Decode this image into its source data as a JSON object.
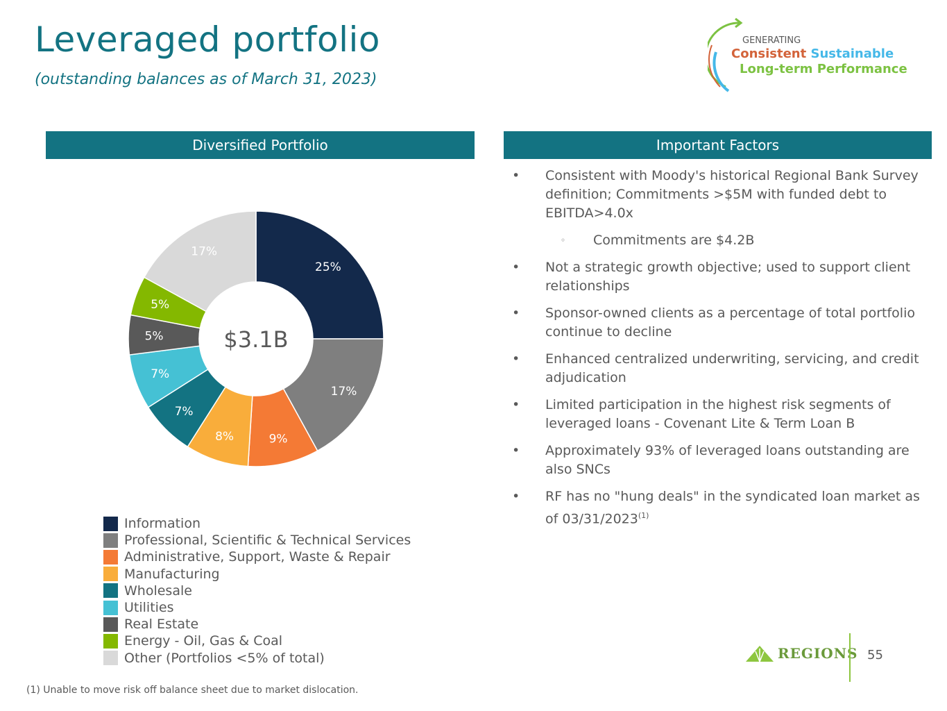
{
  "header": {
    "title": "Leveraged portfolio",
    "subtitle": "(outstanding balances as of March 31, 2023)"
  },
  "logo": {
    "line1": "GENERATING",
    "word_consistent": "Consistent",
    "word_sustainable": "Sustainable",
    "line3": "Long-term Performance"
  },
  "left_panel": {
    "title": "Diversified Portfolio"
  },
  "right_panel": {
    "title": "Important Factors"
  },
  "chart_data": {
    "type": "pie",
    "donut": true,
    "center_label": "$3.1B",
    "categories": [
      "Information",
      "Professional, Scientific & Technical Services",
      "Administrative, Support, Waste & Repair",
      "Manufacturing",
      "Wholesale",
      "Utilities",
      "Real Estate",
      "Energy - Oil, Gas & Coal",
      "Other (Portfolios <5% of total)"
    ],
    "values": [
      25,
      17,
      9,
      8,
      7,
      7,
      5,
      5,
      17
    ],
    "data_labels": [
      "25%",
      "17%",
      "9%",
      "8%",
      "7%",
      "7%",
      "5%",
      "5%",
      "17%"
    ],
    "colors": [
      "#13294b",
      "#7f7f7f",
      "#f47a35",
      "#f9ad3b",
      "#137382",
      "#45c1d4",
      "#595959",
      "#84b800",
      "#d9d9d9"
    ],
    "legend_position": "bottom-left"
  },
  "factors": [
    {
      "type": "bullet",
      "text": "Consistent with Moody's historical Regional Bank Survey definition; Commitments >$5M with funded debt to EBITDA>4.0x"
    },
    {
      "type": "sub",
      "text": "Commitments are $4.2B"
    },
    {
      "type": "bullet",
      "text": "Not a strategic growth objective; used to support client relationships"
    },
    {
      "type": "bullet",
      "text": "Sponsor-owned clients as a percentage of total portfolio continue to decline"
    },
    {
      "type": "bullet",
      "text": "Enhanced centralized underwriting, servicing, and credit adjudication"
    },
    {
      "type": "bullet",
      "text": "Limited participation in the highest risk segments of leveraged loans - Covenant Lite & Term Loan B"
    },
    {
      "type": "bullet",
      "text": "Approximately 93% of leveraged loans outstanding are also SNCs"
    },
    {
      "type": "bullet",
      "text": "RF has no \"hung deals\" in the syndicated loan market as of 03/31/2023",
      "sup": "(1)"
    }
  ],
  "footnote": "(1) Unable to move risk off balance sheet due to market dislocation.",
  "brand": "Regions",
  "page_number": "55"
}
